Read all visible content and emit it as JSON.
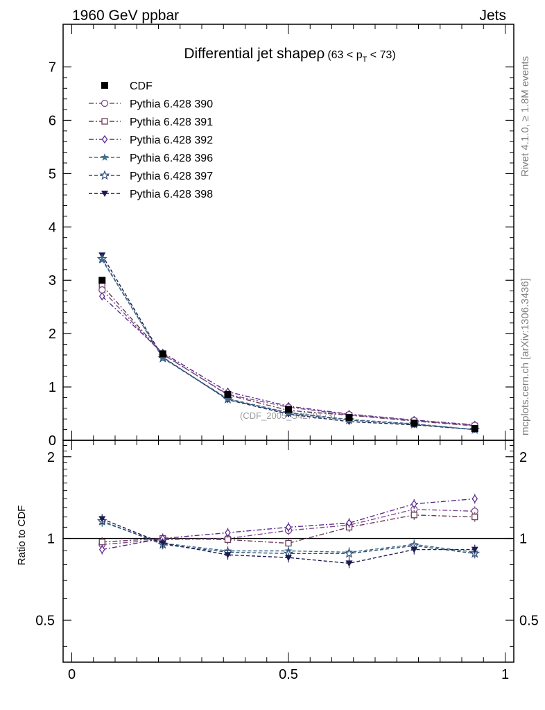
{
  "header": {
    "energy_label": "1960 GeV ppbar",
    "process_label": "Jets",
    "side_rivet": "Rivet 4.1.0, ≥ 1.8M events",
    "side_mcplots": "mcplots.cern.ch [arXiv:1306.3436]",
    "watermark": "(CDF_2005_S4270173)"
  },
  "colors": {
    "CDF": "#000000",
    "p390": "#7a4a8c",
    "p391": "#6a3a5a",
    "p392": "#5a2a90",
    "p396": "#3f6f8a",
    "p397": "#2f4f7a",
    "p398": "#1c1c50",
    "axis": "#000000",
    "side_text": "#7f7f7f"
  },
  "chart_data": [
    {
      "type": "line",
      "panel": "main",
      "title": "Differential jet shapeρ",
      "title_range_pre": "(63 < p",
      "title_range_sub": "T",
      "title_range_post": " < 73)",
      "xlabel": "",
      "ylabel": "",
      "xlim": [
        -0.02,
        1.02
      ],
      "ylim": [
        0,
        7.8
      ],
      "yticks": [
        0,
        1,
        2,
        3,
        4,
        5,
        6,
        7
      ],
      "ytick_labels": [
        "0",
        "1",
        "2",
        "3",
        "4",
        "5",
        "6",
        "7"
      ],
      "x": [
        0.07,
        0.21,
        0.36,
        0.5,
        0.64,
        0.79,
        0.93
      ],
      "series": [
        {
          "name": "CDF",
          "marker": "square-filled",
          "values": [
            3.0,
            1.62,
            0.86,
            0.58,
            0.43,
            0.32,
            0.22
          ]
        },
        {
          "name": "Pythia 6.428 390",
          "marker": "circle-open",
          "dash": "dashdot",
          "values": [
            2.82,
            1.61,
            0.86,
            0.62,
            0.48,
            0.37,
            0.28
          ]
        },
        {
          "name": "Pythia 6.428 391",
          "marker": "square-open",
          "dash": "dashdot",
          "values": [
            2.9,
            1.62,
            0.85,
            0.56,
            0.47,
            0.36,
            0.27
          ]
        },
        {
          "name": "Pythia 6.428 392",
          "marker": "diamond-open",
          "dash": "dashdot",
          "values": [
            2.7,
            1.64,
            0.91,
            0.64,
            0.49,
            0.38,
            0.29
          ]
        },
        {
          "name": "Pythia 6.428 396",
          "marker": "star-filled",
          "dash": "dashed",
          "values": [
            3.38,
            1.55,
            0.78,
            0.52,
            0.39,
            0.31,
            0.2
          ]
        },
        {
          "name": "Pythia 6.428 397",
          "marker": "star-open",
          "dash": "dashed",
          "values": [
            3.4,
            1.54,
            0.77,
            0.51,
            0.38,
            0.3,
            0.2
          ]
        },
        {
          "name": "Pythia 6.428 398",
          "marker": "triangle-down-filled",
          "dash": "dashed",
          "values": [
            3.47,
            1.56,
            0.76,
            0.49,
            0.35,
            0.29,
            0.2
          ]
        }
      ]
    },
    {
      "type": "line",
      "panel": "ratio",
      "ylabel": "Ratio to CDF",
      "xlim": [
        -0.02,
        1.02
      ],
      "ylim": [
        0.35,
        2.3
      ],
      "yscale": "log",
      "yticks": [
        0.5,
        1,
        2
      ],
      "ytick_labels": [
        "0.5",
        "1",
        "2"
      ],
      "xticks": [
        0,
        0.5,
        1
      ],
      "xtick_labels": [
        "0",
        "0.5",
        "1"
      ],
      "reference_line": 1,
      "x": [
        0.07,
        0.21,
        0.36,
        0.5,
        0.64,
        0.79,
        0.93
      ],
      "series": [
        {
          "name": "Pythia 6.428 390",
          "values": [
            0.95,
            0.99,
            1.0,
            1.07,
            1.12,
            1.28,
            1.26
          ]
        },
        {
          "name": "Pythia 6.428 391",
          "values": [
            0.97,
            1.0,
            0.99,
            0.96,
            1.1,
            1.22,
            1.2
          ]
        },
        {
          "name": "Pythia 6.428 392",
          "values": [
            0.91,
            1.0,
            1.05,
            1.1,
            1.14,
            1.34,
            1.4
          ]
        },
        {
          "name": "Pythia 6.428 396",
          "values": [
            1.15,
            0.96,
            0.9,
            0.9,
            0.89,
            0.95,
            0.89
          ]
        },
        {
          "name": "Pythia 6.428 397",
          "values": [
            1.16,
            0.95,
            0.89,
            0.88,
            0.88,
            0.94,
            0.88
          ]
        },
        {
          "name": "Pythia 6.428 398",
          "values": [
            1.18,
            0.96,
            0.87,
            0.85,
            0.81,
            0.91,
            0.91
          ]
        }
      ]
    }
  ]
}
